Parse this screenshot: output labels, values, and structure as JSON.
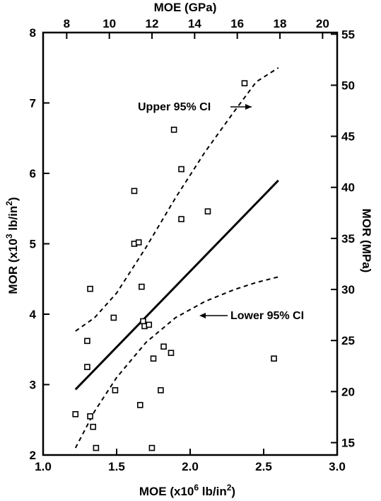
{
  "chart_data": {
    "type": "scatter",
    "x_axis_bottom": {
      "label_main": "MOE (x10",
      "label_exp": "6",
      "label_tail": " lb/in",
      "label_sq": "2",
      "label_close": ")",
      "range": [
        1.0,
        3.0
      ],
      "ticks": [
        1.0,
        1.5,
        2.0,
        2.5,
        3.0
      ],
      "tick_labels": [
        "1.0",
        "1.5",
        "2.0",
        "2.5",
        "3.0"
      ]
    },
    "x_axis_top": {
      "label": "MOE (GPa)",
      "ticks": [
        8,
        10,
        12,
        14,
        16,
        18,
        20
      ],
      "tick_labels": [
        "8",
        "10",
        "12",
        "14",
        "16",
        "18",
        "20"
      ]
    },
    "y_axis_left": {
      "label_main": "MOR (x10",
      "label_exp": "3",
      "label_tail": " lb/in",
      "label_sq": "2",
      "label_close": ")",
      "range": [
        2,
        8
      ],
      "ticks": [
        2,
        3,
        4,
        5,
        6,
        7,
        8
      ],
      "tick_labels": [
        "2",
        "3",
        "4",
        "5",
        "6",
        "7",
        "8"
      ]
    },
    "y_axis_right": {
      "label": "MOR (MPa)",
      "ticks": [
        15,
        20,
        25,
        30,
        35,
        40,
        45,
        50,
        55
      ],
      "tick_labels": [
        "15",
        "20",
        "25",
        "30",
        "35",
        "40",
        "45",
        "50",
        "55"
      ]
    },
    "points": [
      {
        "x": 1.22,
        "y": 2.58
      },
      {
        "x": 1.3,
        "y": 3.62
      },
      {
        "x": 1.3,
        "y": 3.25
      },
      {
        "x": 1.32,
        "y": 4.36
      },
      {
        "x": 1.32,
        "y": 2.55
      },
      {
        "x": 1.34,
        "y": 2.4
      },
      {
        "x": 1.36,
        "y": 2.1
      },
      {
        "x": 1.48,
        "y": 3.95
      },
      {
        "x": 1.49,
        "y": 2.92
      },
      {
        "x": 1.62,
        "y": 5.75
      },
      {
        "x": 1.62,
        "y": 5.0
      },
      {
        "x": 1.65,
        "y": 5.02
      },
      {
        "x": 1.66,
        "y": 2.71
      },
      {
        "x": 1.67,
        "y": 4.39
      },
      {
        "x": 1.68,
        "y": 3.9
      },
      {
        "x": 1.69,
        "y": 3.83
      },
      {
        "x": 1.72,
        "y": 3.85
      },
      {
        "x": 1.74,
        "y": 2.1
      },
      {
        "x": 1.75,
        "y": 3.37
      },
      {
        "x": 1.8,
        "y": 2.92
      },
      {
        "x": 1.82,
        "y": 3.54
      },
      {
        "x": 1.87,
        "y": 3.45
      },
      {
        "x": 1.89,
        "y": 6.62
      },
      {
        "x": 1.94,
        "y": 6.06
      },
      {
        "x": 1.94,
        "y": 5.35
      },
      {
        "x": 2.12,
        "y": 5.46
      },
      {
        "x": 2.37,
        "y": 7.28
      },
      {
        "x": 2.57,
        "y": 3.37
      }
    ],
    "regression_line": {
      "x": [
        1.22,
        2.6
      ],
      "y": [
        2.93,
        5.9
      ]
    },
    "upper_ci": {
      "name": "Upper 95% CI",
      "x": [
        1.22,
        1.35,
        1.5,
        1.7,
        1.9,
        2.1,
        2.3,
        2.45,
        2.6
      ],
      "y": [
        3.76,
        3.95,
        4.3,
        4.95,
        5.65,
        6.3,
        6.88,
        7.3,
        7.5
      ]
    },
    "lower_ci": {
      "name": "Lower 95% CI",
      "x": [
        1.22,
        1.35,
        1.5,
        1.7,
        1.9,
        2.1,
        2.3,
        2.45,
        2.6
      ],
      "y": [
        2.1,
        2.62,
        3.1,
        3.6,
        3.95,
        4.18,
        4.35,
        4.45,
        4.53
      ]
    },
    "annotations": [
      {
        "text": "Upper 95% CI",
        "points_to": "upper_ci"
      },
      {
        "text": "Lower 95% CI",
        "points_to": "lower_ci"
      }
    ],
    "grid": false,
    "colors": {
      "line": "#000000",
      "marker": "#000000",
      "background": "#ffffff"
    }
  }
}
